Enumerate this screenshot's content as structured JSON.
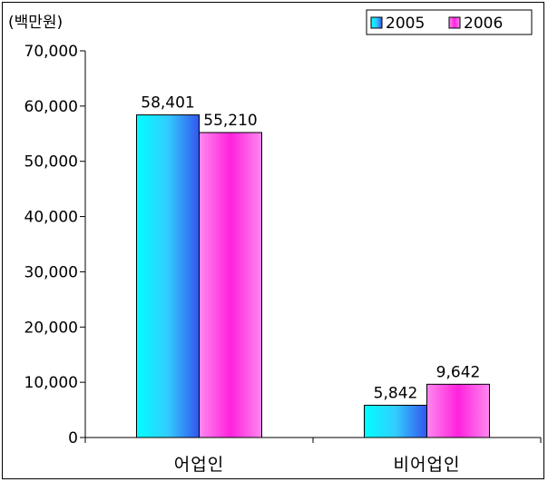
{
  "chart_data": {
    "type": "bar",
    "unit": "(백만원)",
    "categories": [
      "어업인",
      "비어업인"
    ],
    "series": [
      {
        "name": "2005",
        "values": [
          58401,
          5842
        ],
        "labels": [
          "58,401",
          "5,842"
        ],
        "color": "#33e0ff"
      },
      {
        "name": "2006",
        "values": [
          55210,
          9642
        ],
        "labels": [
          "55,210",
          "9,642"
        ],
        "color": "#ff66ee"
      }
    ],
    "ylim": [
      0,
      70000
    ],
    "yticks": [
      0,
      10000,
      20000,
      30000,
      40000,
      50000,
      60000,
      70000
    ],
    "ytick_labels": [
      "0",
      "10,000",
      "20,000",
      "30,000",
      "40,000",
      "50,000",
      "60,000",
      "70,000"
    ],
    "legend": "top-right",
    "grid": false
  }
}
